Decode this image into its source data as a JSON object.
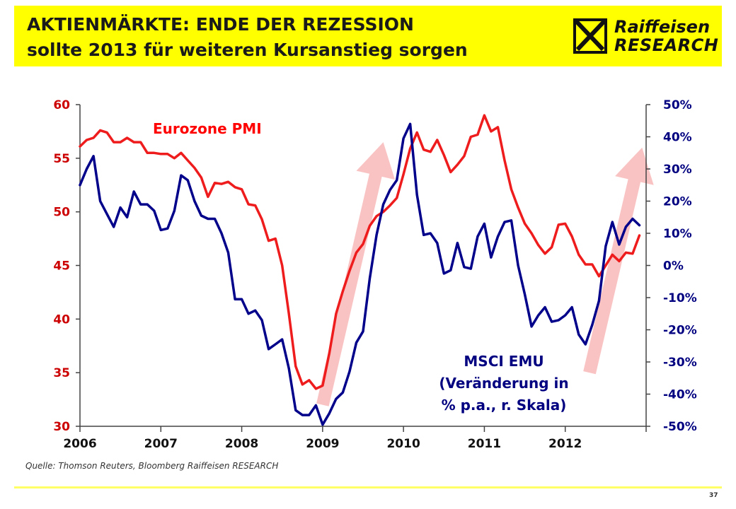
{
  "header": {
    "title_line1": "AKTIENMÄRKTE: ENDE DER REZESSION",
    "title_line2": "sollte 2013 für weiteren Kursanstieg sorgen",
    "logo_line1": "Raiffeisen",
    "logo_line2": "RESEARCH",
    "banner_color": "#ffff00"
  },
  "footer": {
    "source": "Quelle: Thomson Reuters, Bloomberg Raiffeisen RESEARCH",
    "page_number": "37"
  },
  "chart_data": {
    "type": "line",
    "grid": false,
    "x_range": [
      2006,
      2013
    ],
    "x_ticks": [
      "2006",
      "2007",
      "2008",
      "2009",
      "2010",
      "2011",
      "2012"
    ],
    "left_axis": {
      "range": [
        30,
        60
      ],
      "ticks": [
        "30",
        "35",
        "40",
        "45",
        "50",
        "55",
        "60"
      ],
      "color": "#cc0000"
    },
    "right_axis": {
      "range": [
        -50,
        50
      ],
      "ticks": [
        "-50%",
        "-40%",
        "-30%",
        "-20%",
        "-10%",
        "0%",
        "10%",
        "20%",
        "30%",
        "40%",
        "50%"
      ],
      "color": "#000080"
    },
    "annotations": [
      {
        "text": "Eurozone PMI",
        "color": "#ff0000"
      },
      {
        "lines": [
          "MSCI EMU",
          "(Veränderung in",
          "% p.a., r. Skala)"
        ],
        "color": "#000080"
      }
    ],
    "trend_arrows": [
      {
        "from": [
          2009.0,
          32
        ],
        "to": [
          2009.75,
          56.5
        ],
        "color": "#f9b8b8"
      },
      {
        "from": [
          2012.3,
          35
        ],
        "to": [
          2012.95,
          56
        ],
        "color": "#f9b8b8"
      }
    ],
    "series": [
      {
        "name": "Eurozone PMI",
        "axis": "left",
        "color": "#ee1c1c",
        "x": [
          2006.0,
          2006.083,
          2006.167,
          2006.25,
          2006.333,
          2006.417,
          2006.5,
          2006.583,
          2006.667,
          2006.75,
          2006.833,
          2006.917,
          2007.0,
          2007.083,
          2007.167,
          2007.25,
          2007.333,
          2007.417,
          2007.5,
          2007.583,
          2007.667,
          2007.75,
          2007.833,
          2007.917,
          2008.0,
          2008.083,
          2008.167,
          2008.25,
          2008.333,
          2008.417,
          2008.5,
          2008.583,
          2008.667,
          2008.75,
          2008.833,
          2008.917,
          2009.0,
          2009.083,
          2009.167,
          2009.25,
          2009.333,
          2009.417,
          2009.5,
          2009.583,
          2009.667,
          2009.75,
          2009.833,
          2009.917,
          2010.0,
          2010.083,
          2010.167,
          2010.25,
          2010.333,
          2010.417,
          2010.5,
          2010.583,
          2010.667,
          2010.75,
          2010.833,
          2010.917,
          2011.0,
          2011.083,
          2011.167,
          2011.25,
          2011.333,
          2011.417,
          2011.5,
          2011.583,
          2011.667,
          2011.75,
          2011.833,
          2011.917,
          2012.0,
          2012.083,
          2012.167,
          2012.25,
          2012.333,
          2012.417,
          2012.5,
          2012.583,
          2012.667,
          2012.75,
          2012.833,
          2012.917
        ],
        "y": [
          56.1,
          56.7,
          56.9,
          57.6,
          57.4,
          56.5,
          56.5,
          56.9,
          56.5,
          56.5,
          55.5,
          55.5,
          55.4,
          55.4,
          55.0,
          55.5,
          54.8,
          54.1,
          53.2,
          51.4,
          52.7,
          52.6,
          52.8,
          52.3,
          52.1,
          50.7,
          50.6,
          49.3,
          47.3,
          47.5,
          45.0,
          40.5,
          35.6,
          33.9,
          34.3,
          33.5,
          33.8,
          36.8,
          40.5,
          42.6,
          44.5,
          46.2,
          47.0,
          48.7,
          49.6,
          50.0,
          50.6,
          51.3,
          53.5,
          55.9,
          57.4,
          55.8,
          55.6,
          56.7,
          55.3,
          53.7,
          54.4,
          55.2,
          57.0,
          57.2,
          59.0,
          57.5,
          57.9,
          54.8,
          52.1,
          50.4,
          48.9,
          48.0,
          46.9,
          46.1,
          46.7,
          48.8,
          48.9,
          47.7,
          46.0,
          45.1,
          45.1,
          44.0,
          45.0,
          46.0,
          45.4,
          46.2,
          46.1,
          47.8
        ]
      },
      {
        "name": "MSCI EMU",
        "axis": "right",
        "color": "#00008b",
        "x": [
          2006.0,
          2006.083,
          2006.167,
          2006.25,
          2006.333,
          2006.417,
          2006.5,
          2006.583,
          2006.667,
          2006.75,
          2006.833,
          2006.917,
          2007.0,
          2007.083,
          2007.167,
          2007.25,
          2007.333,
          2007.417,
          2007.5,
          2007.583,
          2007.667,
          2007.75,
          2007.833,
          2007.917,
          2008.0,
          2008.083,
          2008.167,
          2008.25,
          2008.333,
          2008.417,
          2008.5,
          2008.583,
          2008.667,
          2008.75,
          2008.833,
          2008.917,
          2009.0,
          2009.083,
          2009.167,
          2009.25,
          2009.333,
          2009.417,
          2009.5,
          2009.583,
          2009.667,
          2009.75,
          2009.833,
          2009.917,
          2010.0,
          2010.083,
          2010.167,
          2010.25,
          2010.333,
          2010.417,
          2010.5,
          2010.583,
          2010.667,
          2010.75,
          2010.833,
          2010.917,
          2011.0,
          2011.083,
          2011.167,
          2011.25,
          2011.333,
          2011.417,
          2011.5,
          2011.583,
          2011.667,
          2011.75,
          2011.833,
          2011.917,
          2012.0,
          2012.083,
          2012.167,
          2012.25,
          2012.333,
          2012.417,
          2012.5,
          2012.583,
          2012.667,
          2012.75,
          2012.833,
          2012.917
        ],
        "y": [
          25,
          30,
          34,
          20,
          16,
          12,
          18,
          15,
          23,
          19,
          19,
          17,
          11,
          11.5,
          17,
          28,
          26.5,
          20,
          15.5,
          14.5,
          14.5,
          10,
          4,
          -10.5,
          -10.5,
          -15,
          -14,
          -17,
          -26,
          -24.5,
          -23,
          -32,
          -45,
          -46.5,
          -46.5,
          -43.5,
          -49.5,
          -46,
          -41.5,
          -39.5,
          -33,
          -24,
          -20.5,
          -4,
          9.5,
          19,
          23.5,
          26.5,
          39.5,
          44,
          22,
          9.5,
          10,
          7,
          -2.5,
          -1.5,
          7,
          -0.5,
          -1,
          9,
          13,
          2.5,
          9,
          13.5,
          14,
          0,
          -9,
          -19,
          -15.5,
          -13,
          -17.5,
          -17,
          -15.5,
          -13,
          -21.5,
          -24.5,
          -18.5,
          -11,
          6,
          13.5,
          6.5,
          12,
          14.5,
          12.5
        ]
      }
    ]
  }
}
